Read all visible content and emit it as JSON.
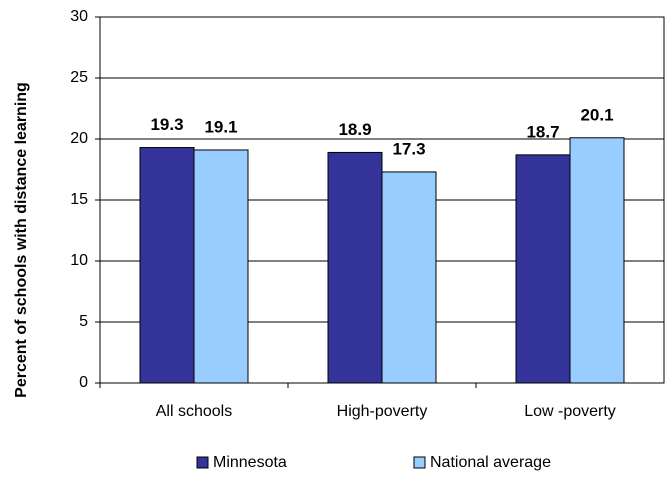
{
  "chart_data": {
    "type": "bar",
    "y_label": "Percent of schools with distance learning",
    "categories": [
      "All schools",
      "High-poverty",
      "Low -poverty"
    ],
    "series": [
      {
        "name": "Minnesota",
        "color": "#333399",
        "values": [
          19.3,
          18.9,
          18.7
        ]
      },
      {
        "name": "National average",
        "color": "#99ccff",
        "values": [
          19.1,
          17.3,
          20.1
        ]
      }
    ],
    "ylim": [
      0,
      30
    ],
    "yticks": [
      0,
      5,
      10,
      15,
      20,
      25,
      30
    ],
    "grid": true,
    "legend": "bottom"
  }
}
